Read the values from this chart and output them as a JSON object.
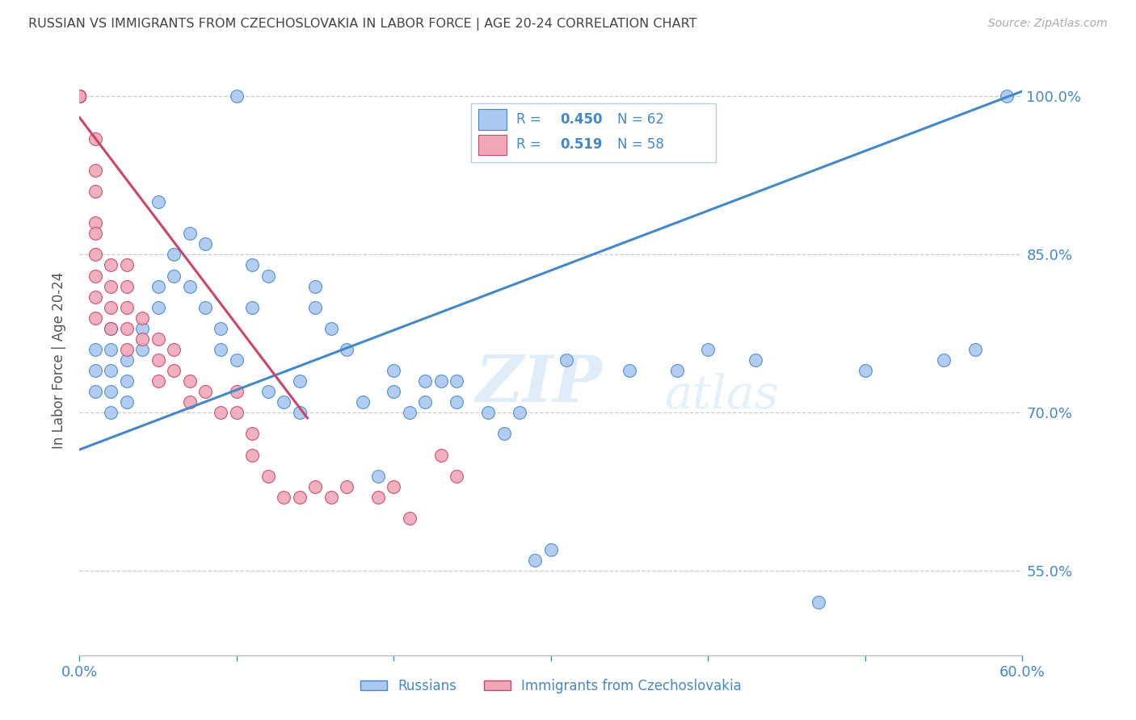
{
  "title": "RUSSIAN VS IMMIGRANTS FROM CZECHOSLOVAKIA IN LABOR FORCE | AGE 20-24 CORRELATION CHART",
  "source": "Source: ZipAtlas.com",
  "ylabel": "In Labor Force | Age 20-24",
  "xlim": [
    0.0,
    0.6
  ],
  "ylim": [
    0.47,
    1.03
  ],
  "yticks": [
    0.55,
    0.7,
    0.85,
    1.0
  ],
  "ytick_labels": [
    "55.0%",
    "70.0%",
    "85.0%",
    "100.0%"
  ],
  "blue_R": 0.45,
  "blue_N": 62,
  "pink_R": 0.519,
  "pink_N": 58,
  "blue_color": "#aac8f0",
  "pink_color": "#f0a8b8",
  "blue_line_color": "#4488cc",
  "pink_line_color": "#cc4466",
  "axis_color": "#4488cc",
  "grid_color": "#cccccc",
  "watermark_zip": "ZIP",
  "watermark_atlas": "atlas",
  "legend_blue_label": "Russians",
  "legend_pink_label": "Immigrants from Czechoslovakia",
  "blue_x": [
    0.01,
    0.01,
    0.01,
    0.02,
    0.02,
    0.02,
    0.02,
    0.02,
    0.03,
    0.03,
    0.03,
    0.04,
    0.04,
    0.05,
    0.05,
    0.05,
    0.06,
    0.06,
    0.07,
    0.07,
    0.08,
    0.08,
    0.09,
    0.09,
    0.1,
    0.1,
    0.11,
    0.11,
    0.12,
    0.12,
    0.13,
    0.14,
    0.14,
    0.15,
    0.15,
    0.16,
    0.17,
    0.18,
    0.19,
    0.2,
    0.2,
    0.21,
    0.22,
    0.22,
    0.23,
    0.24,
    0.24,
    0.26,
    0.27,
    0.28,
    0.29,
    0.3,
    0.31,
    0.35,
    0.38,
    0.4,
    0.43,
    0.47,
    0.5,
    0.55,
    0.57,
    0.59
  ],
  "blue_y": [
    0.74,
    0.72,
    0.76,
    0.78,
    0.74,
    0.76,
    0.72,
    0.7,
    0.75,
    0.73,
    0.71,
    0.76,
    0.78,
    0.82,
    0.8,
    0.9,
    0.85,
    0.83,
    0.87,
    0.82,
    0.86,
    0.8,
    0.78,
    0.76,
    1.0,
    0.75,
    0.84,
    0.8,
    0.83,
    0.72,
    0.71,
    0.73,
    0.7,
    0.82,
    0.8,
    0.78,
    0.76,
    0.71,
    0.64,
    0.74,
    0.72,
    0.7,
    0.73,
    0.71,
    0.73,
    0.73,
    0.71,
    0.7,
    0.68,
    0.7,
    0.56,
    0.57,
    0.75,
    0.74,
    0.74,
    0.76,
    0.75,
    0.52,
    0.74,
    0.75,
    0.76,
    1.0
  ],
  "pink_x": [
    0.0,
    0.0,
    0.0,
    0.0,
    0.0,
    0.0,
    0.0,
    0.0,
    0.0,
    0.0,
    0.0,
    0.0,
    0.0,
    0.0,
    0.01,
    0.01,
    0.01,
    0.01,
    0.01,
    0.01,
    0.01,
    0.01,
    0.01,
    0.02,
    0.02,
    0.02,
    0.02,
    0.03,
    0.03,
    0.03,
    0.03,
    0.03,
    0.04,
    0.04,
    0.05,
    0.05,
    0.05,
    0.06,
    0.06,
    0.07,
    0.07,
    0.08,
    0.09,
    0.1,
    0.1,
    0.11,
    0.11,
    0.12,
    0.13,
    0.14,
    0.15,
    0.16,
    0.17,
    0.19,
    0.2,
    0.21,
    0.23,
    0.24
  ],
  "pink_y": [
    1.0,
    1.0,
    1.0,
    1.0,
    1.0,
    1.0,
    1.0,
    1.0,
    1.0,
    1.0,
    1.0,
    1.0,
    1.0,
    1.0,
    0.96,
    0.93,
    0.91,
    0.88,
    0.87,
    0.85,
    0.83,
    0.81,
    0.79,
    0.84,
    0.82,
    0.8,
    0.78,
    0.84,
    0.82,
    0.8,
    0.78,
    0.76,
    0.79,
    0.77,
    0.77,
    0.75,
    0.73,
    0.76,
    0.74,
    0.73,
    0.71,
    0.72,
    0.7,
    0.72,
    0.7,
    0.68,
    0.66,
    0.64,
    0.62,
    0.62,
    0.63,
    0.62,
    0.63,
    0.62,
    0.63,
    0.6,
    0.66,
    0.64
  ],
  "blue_trend_x0": 0.0,
  "blue_trend_y0": 0.665,
  "blue_trend_x1": 0.6,
  "blue_trend_y1": 1.005,
  "pink_trend_x0": 0.0,
  "pink_trend_y0": 0.98,
  "pink_trend_x1": 0.145,
  "pink_trend_y1": 0.695
}
